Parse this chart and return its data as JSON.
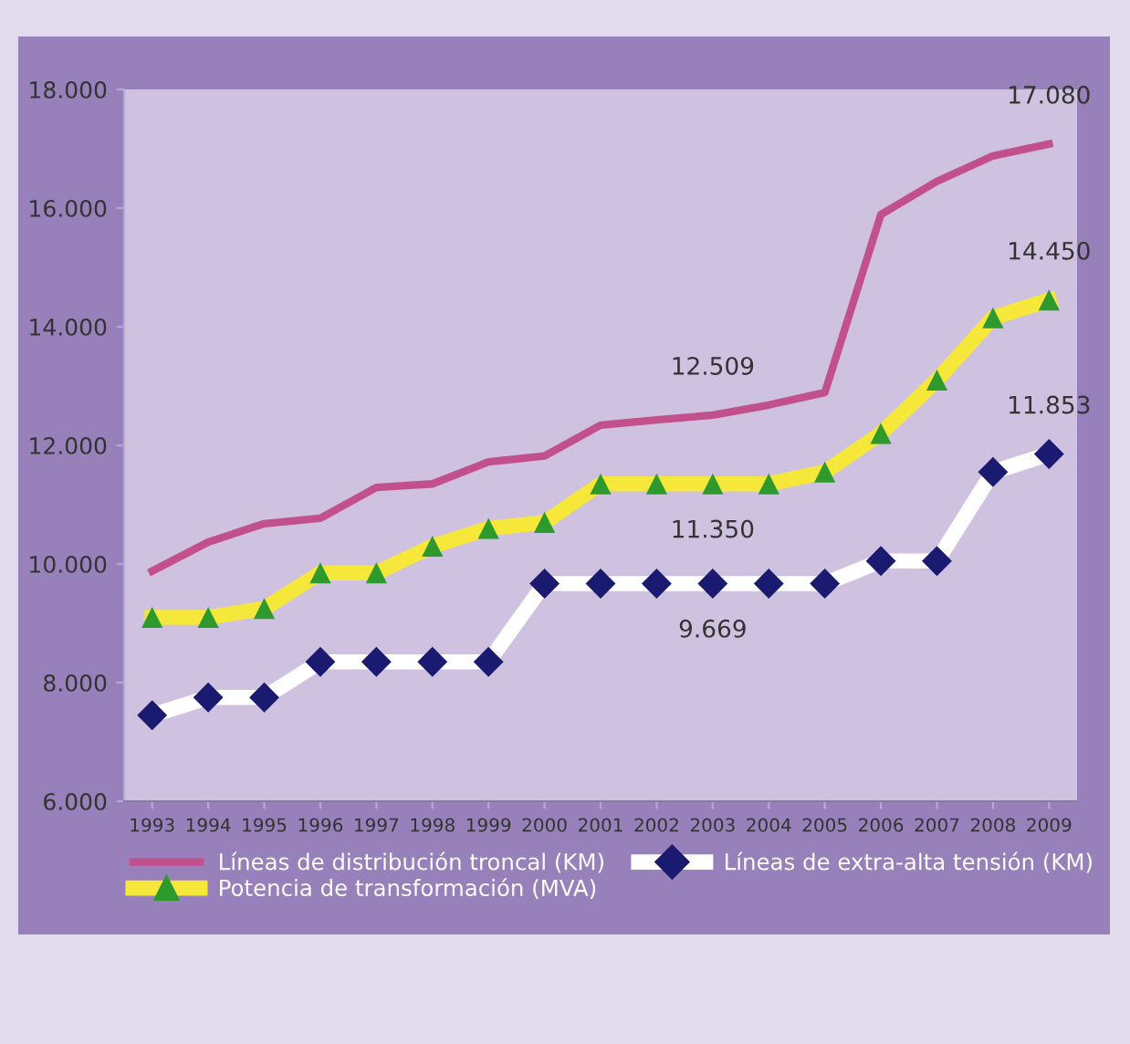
{
  "chart_data": {
    "type": "line",
    "categories": [
      "1993",
      "1994",
      "1995",
      "1996",
      "1997",
      "1998",
      "1999",
      "2000",
      "2001",
      "2002",
      "2003",
      "2004",
      "2005",
      "2006",
      "2007",
      "2008",
      "2009"
    ],
    "ylim": [
      6000,
      18000
    ],
    "yticks": [
      {
        "value": 6000,
        "label": "6.000"
      },
      {
        "value": 8000,
        "label": "8.000"
      },
      {
        "value": 10000,
        "label": "10.000"
      },
      {
        "value": 12000,
        "label": "12.000"
      },
      {
        "value": 14000,
        "label": "14.000"
      },
      {
        "value": 16000,
        "label": "16.000"
      },
      {
        "value": 18000,
        "label": "18.000"
      }
    ],
    "grid": false,
    "legend": "bottom",
    "series": [
      {
        "name": "Líneas de distribución troncal (KM)",
        "color": "#c2508c",
        "marker": "none",
        "values": [
          9880,
          10370,
          10680,
          10770,
          11290,
          11350,
          11720,
          11820,
          12340,
          12430,
          12509,
          12680,
          12890,
          15890,
          16450,
          16880,
          17080
        ],
        "value_labels": [
          null,
          null,
          null,
          null,
          null,
          null,
          null,
          null,
          null,
          null,
          "12.509",
          null,
          null,
          null,
          null,
          null,
          "17.080"
        ]
      },
      {
        "name": "Potencia de transformación (MVA)",
        "color": "#f5e83a",
        "marker": "triangle",
        "colors": [
          "#2e9a2e",
          "#2e9a2e",
          "#2e9a2e",
          "#2e9a2e",
          "#2e9a2e",
          "#2e9a2e",
          "#2e9a2e",
          "#2e9a2e",
          "#2e9a2e",
          "#2e9a2e",
          "#2e9a2e",
          "#2e9a2e",
          "#2e9a2e",
          "#2e9a2e",
          "#2e9a2e",
          "#2e9a2e",
          "#2e9a2e"
        ],
        "values": [
          9100,
          9100,
          9250,
          9850,
          9850,
          10300,
          10600,
          10700,
          11350,
          11350,
          11350,
          11350,
          11550,
          12200,
          13100,
          14150,
          14450
        ],
        "value_labels": [
          null,
          null,
          null,
          null,
          null,
          null,
          null,
          null,
          null,
          null,
          "11.350",
          null,
          null,
          null,
          null,
          null,
          "14.450"
        ]
      },
      {
        "name": "Líneas de extra-alta tensión (KM)",
        "color": "#ffffff",
        "marker": "diamond",
        "colors": [
          "#1a1a70",
          "#1a1a70",
          "#1a1a70",
          "#1a1a70",
          "#1a1a70",
          "#1a1a70",
          "#1a1a70",
          "#1a1a70",
          "#1a1a70",
          "#1a1a70",
          "#1a1a70",
          "#1a1a70",
          "#1a1a70",
          "#1a1a70",
          "#1a1a70",
          "#1a1a70",
          "#1a1a70"
        ],
        "values": [
          7450,
          7750,
          7750,
          8350,
          8350,
          8350,
          8350,
          9669,
          9669,
          9669,
          9669,
          9669,
          9669,
          10050,
          10050,
          11550,
          11853
        ],
        "value_labels": [
          null,
          null,
          null,
          null,
          null,
          null,
          null,
          null,
          null,
          null,
          "9.669",
          null,
          null,
          null,
          null,
          null,
          "11.853"
        ]
      }
    ]
  }
}
